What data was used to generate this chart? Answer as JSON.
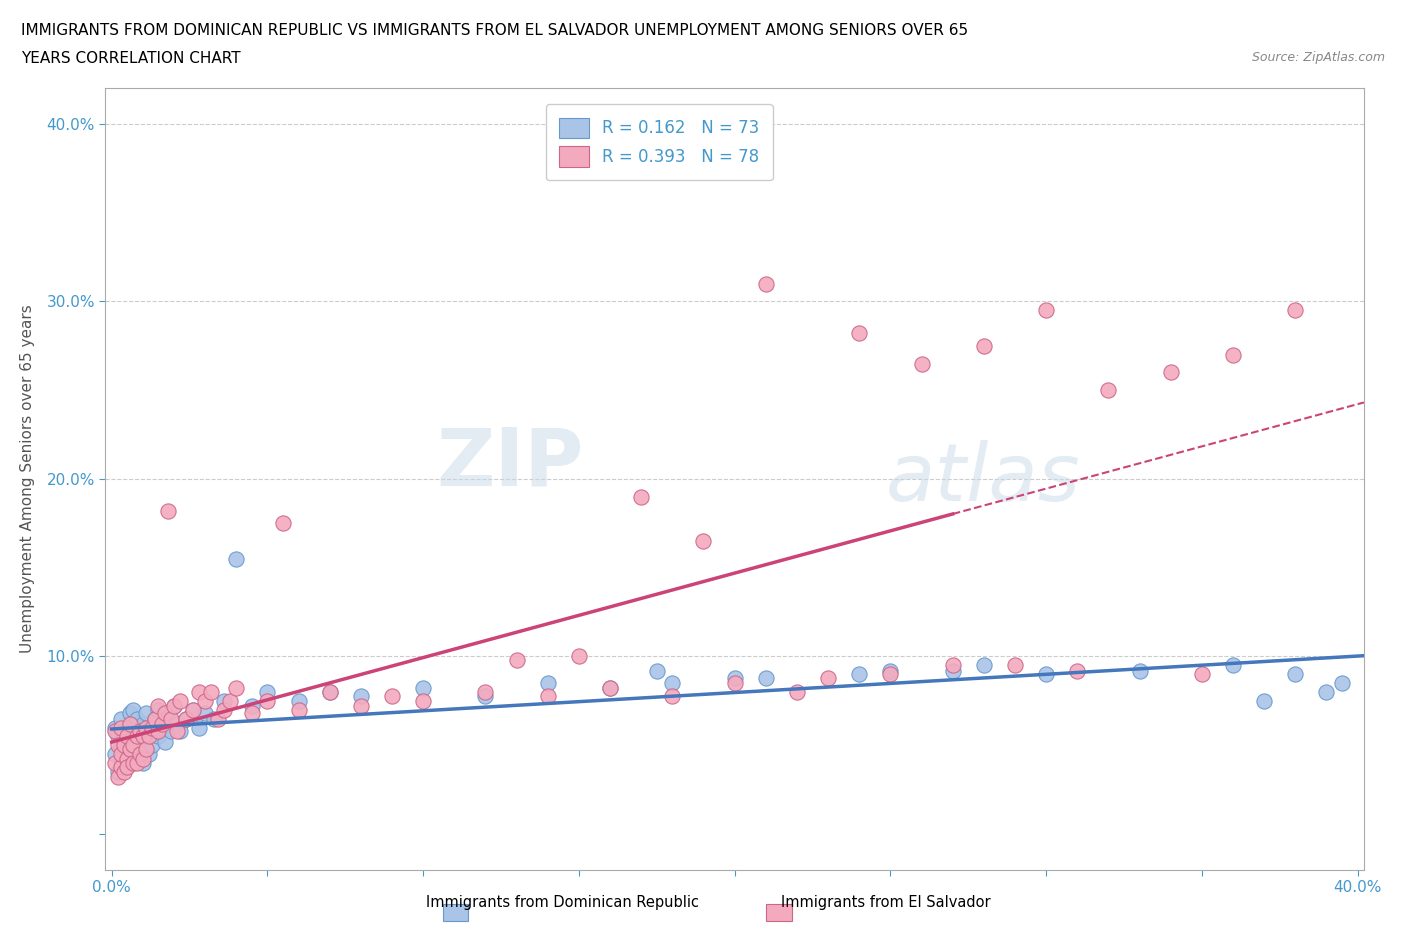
{
  "title_line1": "IMMIGRANTS FROM DOMINICAN REPUBLIC VS IMMIGRANTS FROM EL SALVADOR UNEMPLOYMENT AMONG SENIORS OVER 65",
  "title_line2": "YEARS CORRELATION CHART",
  "source_text": "Source: ZipAtlas.com",
  "ylabel": "Unemployment Among Seniors over 65 years",
  "xlim": [
    -0.002,
    0.402
  ],
  "ylim": [
    -0.02,
    0.42
  ],
  "color_dr": "#aac4e8",
  "color_es": "#f4aabe",
  "edge_dr": "#6699cc",
  "edge_es": "#cc6688",
  "trendline_color_dr": "#4477bb",
  "trendline_color_es": "#cc4477",
  "r_dr": 0.162,
  "n_dr": 73,
  "r_es": 0.393,
  "n_es": 78,
  "watermark_zip": "ZIP",
  "watermark_atlas": "atlas",
  "background_color": "#ffffff",
  "grid_color": "#cccccc",
  "dr_x": [
    0.001,
    0.001,
    0.002,
    0.002,
    0.003,
    0.003,
    0.003,
    0.004,
    0.004,
    0.005,
    0.005,
    0.005,
    0.006,
    0.006,
    0.006,
    0.007,
    0.007,
    0.007,
    0.008,
    0.008,
    0.008,
    0.009,
    0.009,
    0.01,
    0.01,
    0.01,
    0.011,
    0.011,
    0.012,
    0.012,
    0.013,
    0.013,
    0.014,
    0.015,
    0.015,
    0.016,
    0.017,
    0.018,
    0.019,
    0.02,
    0.021,
    0.022,
    0.024,
    0.026,
    0.028,
    0.03,
    0.033,
    0.036,
    0.04,
    0.045,
    0.05,
    0.06,
    0.07,
    0.08,
    0.1,
    0.12,
    0.14,
    0.16,
    0.18,
    0.2,
    0.24,
    0.27,
    0.3,
    0.33,
    0.36,
    0.37,
    0.38,
    0.39,
    0.395,
    0.175,
    0.21,
    0.25,
    0.28
  ],
  "dr_y": [
    0.045,
    0.06,
    0.035,
    0.055,
    0.042,
    0.065,
    0.05,
    0.038,
    0.055,
    0.048,
    0.06,
    0.04,
    0.052,
    0.068,
    0.045,
    0.055,
    0.07,
    0.048,
    0.058,
    0.042,
    0.065,
    0.05,
    0.06,
    0.048,
    0.062,
    0.04,
    0.055,
    0.068,
    0.058,
    0.045,
    0.06,
    0.05,
    0.065,
    0.055,
    0.07,
    0.06,
    0.052,
    0.068,
    0.058,
    0.072,
    0.062,
    0.058,
    0.065,
    0.07,
    0.06,
    0.068,
    0.065,
    0.075,
    0.155,
    0.072,
    0.08,
    0.075,
    0.08,
    0.078,
    0.082,
    0.078,
    0.085,
    0.082,
    0.085,
    0.088,
    0.09,
    0.092,
    0.09,
    0.092,
    0.095,
    0.075,
    0.09,
    0.08,
    0.085,
    0.092,
    0.088,
    0.092,
    0.095
  ],
  "es_x": [
    0.001,
    0.001,
    0.002,
    0.002,
    0.003,
    0.003,
    0.003,
    0.004,
    0.004,
    0.005,
    0.005,
    0.005,
    0.006,
    0.006,
    0.007,
    0.007,
    0.008,
    0.008,
    0.009,
    0.009,
    0.01,
    0.01,
    0.011,
    0.011,
    0.012,
    0.013,
    0.014,
    0.015,
    0.015,
    0.016,
    0.017,
    0.018,
    0.019,
    0.02,
    0.021,
    0.022,
    0.024,
    0.026,
    0.028,
    0.03,
    0.032,
    0.034,
    0.036,
    0.038,
    0.04,
    0.045,
    0.05,
    0.055,
    0.06,
    0.07,
    0.08,
    0.09,
    0.1,
    0.12,
    0.14,
    0.16,
    0.18,
    0.2,
    0.22,
    0.24,
    0.26,
    0.28,
    0.3,
    0.32,
    0.34,
    0.36,
    0.38,
    0.21,
    0.17,
    0.19,
    0.13,
    0.15,
    0.25,
    0.27,
    0.23,
    0.29,
    0.31,
    0.35
  ],
  "es_y": [
    0.04,
    0.058,
    0.032,
    0.05,
    0.038,
    0.06,
    0.045,
    0.035,
    0.05,
    0.042,
    0.055,
    0.038,
    0.048,
    0.062,
    0.04,
    0.05,
    0.055,
    0.04,
    0.058,
    0.045,
    0.055,
    0.042,
    0.06,
    0.048,
    0.055,
    0.06,
    0.065,
    0.058,
    0.072,
    0.062,
    0.068,
    0.182,
    0.065,
    0.072,
    0.058,
    0.075,
    0.065,
    0.07,
    0.08,
    0.075,
    0.08,
    0.065,
    0.07,
    0.075,
    0.082,
    0.068,
    0.075,
    0.175,
    0.07,
    0.08,
    0.072,
    0.078,
    0.075,
    0.08,
    0.078,
    0.082,
    0.078,
    0.085,
    0.08,
    0.282,
    0.265,
    0.275,
    0.295,
    0.25,
    0.26,
    0.27,
    0.295,
    0.31,
    0.19,
    0.165,
    0.098,
    0.1,
    0.09,
    0.095,
    0.088,
    0.095,
    0.092,
    0.09
  ]
}
